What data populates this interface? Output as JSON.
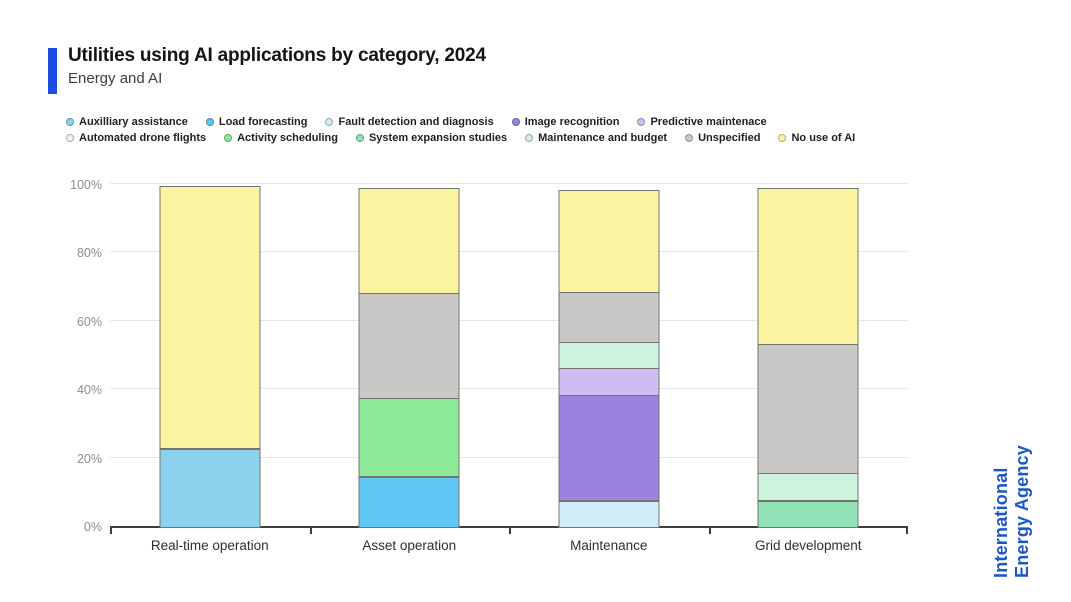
{
  "header": {
    "accent_color": "#1c4ae3"
  },
  "branding": {
    "line1": "International",
    "line2": "Energy Agency",
    "color": "#1b57c9"
  },
  "chart_data": {
    "type": "bar",
    "stacked": true,
    "title": "Utilities using AI applications by category, 2024",
    "subtitle": "Energy and AI",
    "categories": [
      "Real-time operation",
      "Asset operation",
      "Maintenance",
      "Grid development"
    ],
    "series": [
      {
        "name": "Auxilliary assistance",
        "color": "#8bd2ef",
        "values": [
          23,
          0,
          0,
          0
        ]
      },
      {
        "name": "Load forecasting",
        "color": "#5ec7f2",
        "values": [
          0,
          15,
          0,
          0
        ]
      },
      {
        "name": "Fault detection and diagnosis",
        "color": "#cfecf9",
        "values": [
          0,
          0,
          8,
          0
        ]
      },
      {
        "name": "Image recognition",
        "color": "#9b82e0",
        "values": [
          0,
          0,
          31,
          0
        ]
      },
      {
        "name": "Predictive maintenace",
        "color": "#cfbcf0",
        "values": [
          0,
          0,
          8,
          0
        ]
      },
      {
        "name": "Automated drone flights",
        "color": "#e9f5fc",
        "values": [
          0,
          0,
          0,
          0
        ]
      },
      {
        "name": "Activity scheduling",
        "color": "#8ce99a",
        "values": [
          0,
          23,
          0,
          0
        ]
      },
      {
        "name": "System expansion studies",
        "color": "#92e2b8",
        "values": [
          0,
          0,
          0,
          8
        ]
      },
      {
        "name": "Maintenance and budget",
        "color": "#cdf2de",
        "values": [
          0,
          0,
          8,
          8
        ]
      },
      {
        "name": "Unspecified",
        "color": "#c9c8c7",
        "values": [
          0,
          31,
          15,
          38
        ]
      },
      {
        "name": "No use of AI",
        "color": "#faf3a1",
        "values": [
          77,
          31,
          30,
          46
        ]
      }
    ],
    "legend_rows": [
      5,
      6
    ],
    "legend_position": "top",
    "ylim": [
      0,
      100
    ],
    "yticks": [
      "0%",
      "20%",
      "40%",
      "60%",
      "80%",
      "100%"
    ],
    "grid": true
  }
}
